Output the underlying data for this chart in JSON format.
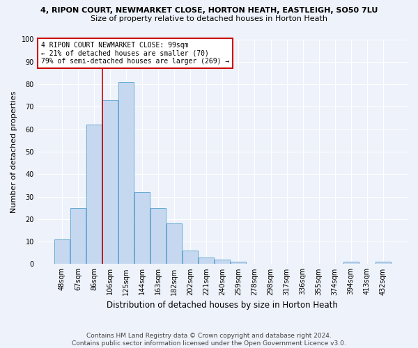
{
  "title_line1": "4, RIPON COURT, NEWMARKET CLOSE, HORTON HEATH, EASTLEIGH, SO50 7LU",
  "title_line2": "Size of property relative to detached houses in Horton Heath",
  "xlabel": "Distribution of detached houses by size in Horton Heath",
  "ylabel": "Number of detached properties",
  "categories": [
    "48sqm",
    "67sqm",
    "86sqm",
    "106sqm",
    "125sqm",
    "144sqm",
    "163sqm",
    "182sqm",
    "202sqm",
    "221sqm",
    "240sqm",
    "259sqm",
    "278sqm",
    "298sqm",
    "317sqm",
    "336sqm",
    "355sqm",
    "374sqm",
    "394sqm",
    "413sqm",
    "432sqm"
  ],
  "values": [
    11,
    25,
    62,
    73,
    81,
    32,
    25,
    18,
    6,
    3,
    2,
    1,
    0,
    0,
    0,
    0,
    0,
    0,
    1,
    0,
    1
  ],
  "bar_color": "#c5d8ef",
  "bar_edge_color": "#6aaad4",
  "vline_x": 2.5,
  "ylim": [
    0,
    100
  ],
  "yticks": [
    0,
    10,
    20,
    30,
    40,
    50,
    60,
    70,
    80,
    90,
    100
  ],
  "annotation_text_line1": "4 RIPON COURT NEWMARKET CLOSE: 99sqm",
  "annotation_text_line2": "← 21% of detached houses are smaller (70)",
  "annotation_text_line3": "79% of semi-detached houses are larger (269) →",
  "footer_line1": "Contains HM Land Registry data © Crown copyright and database right 2024.",
  "footer_line2": "Contains public sector information licensed under the Open Government Licence v3.0.",
  "background_color": "#eef2fa",
  "plot_bg_color": "#eef2fa",
  "grid_color": "#ffffff",
  "annotation_box_color": "#ffffff",
  "annotation_box_edge": "#cc0000",
  "vline_color": "#cc0000",
  "title1_fontsize": 8.0,
  "title2_fontsize": 8.0,
  "ylabel_fontsize": 8.0,
  "xlabel_fontsize": 8.5,
  "tick_fontsize": 7.0,
  "ann_fontsize": 7.0,
  "footer_fontsize": 6.5
}
